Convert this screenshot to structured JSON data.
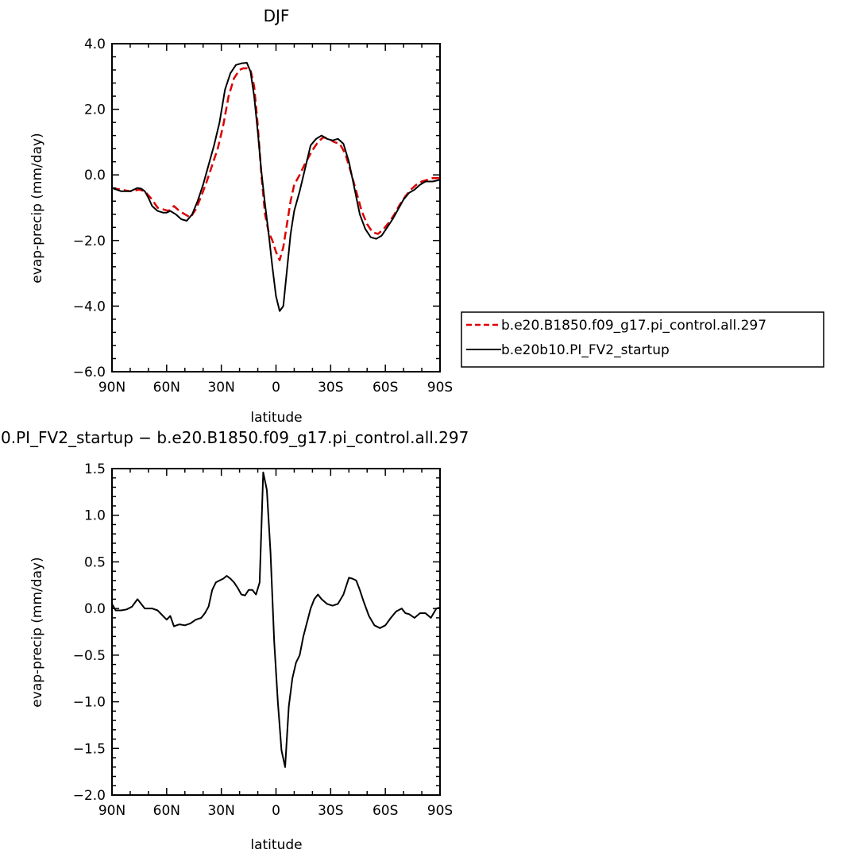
{
  "chart_data": [
    {
      "type": "line",
      "title": "DJF",
      "xlabel": "latitude",
      "ylabel": "evap-precip (mm/day)",
      "xlim": [
        90,
        -90
      ],
      "ylim": [
        -6.0,
        4.0
      ],
      "grid": false,
      "x_ticks": [
        90,
        60,
        30,
        0,
        -30,
        -60,
        -90
      ],
      "x_tick_labels": [
        "90N",
        "60N",
        "30N",
        "0",
        "30S",
        "60S",
        "90S"
      ],
      "y_ticks": [
        4.0,
        2.0,
        0.0,
        -2.0,
        -4.0,
        -6.0
      ],
      "y_tick_labels": [
        "4.0",
        "2.0",
        "0.0",
        "−2.0",
        "−4.0",
        "−6.0"
      ],
      "legend_position": "right",
      "series": [
        {
          "name": "b.e20.B1850.f09_g17.pi_control.all.297",
          "color": "#dd0000",
          "dash": "dashed",
          "x": [
            90,
            85,
            80,
            75,
            72,
            68,
            65,
            62,
            59,
            56,
            53,
            50,
            47,
            44,
            41,
            38,
            35,
            32,
            29,
            26,
            23,
            20,
            18,
            16,
            14,
            12,
            10,
            8,
            6,
            4,
            2,
            0,
            -2,
            -4,
            -6,
            -8,
            -10,
            -13,
            -16,
            -20,
            -23,
            -26,
            -29,
            -32,
            -35,
            -38,
            -41,
            -44,
            -47,
            -50,
            -53,
            -56,
            -59,
            -62,
            -65,
            -68,
            -71,
            -74,
            -77,
            -80,
            -83,
            -86,
            -90
          ],
          "y": [
            -0.4,
            -0.45,
            -0.5,
            -0.45,
            -0.5,
            -0.75,
            -1.0,
            -1.05,
            -1.1,
            -0.95,
            -1.1,
            -1.2,
            -1.3,
            -1.05,
            -0.65,
            -0.2,
            0.3,
            0.8,
            1.5,
            2.4,
            2.95,
            3.2,
            3.25,
            3.25,
            3.2,
            2.7,
            1.5,
            0.0,
            -1.2,
            -1.75,
            -2.0,
            -2.35,
            -2.6,
            -2.2,
            -1.5,
            -0.8,
            -0.3,
            0.0,
            0.35,
            0.75,
            1.0,
            1.15,
            1.1,
            1.0,
            0.95,
            0.65,
            0.1,
            -0.5,
            -1.1,
            -1.5,
            -1.75,
            -1.8,
            -1.65,
            -1.45,
            -1.2,
            -0.9,
            -0.65,
            -0.45,
            -0.3,
            -0.2,
            -0.15,
            -0.1,
            -0.1
          ]
        },
        {
          "name": "b.e20b10.PI_FV2_startup",
          "color": "#000000",
          "dash": "solid",
          "x": [
            90,
            85,
            80,
            76,
            74,
            72,
            70,
            68,
            65,
            62,
            60,
            58,
            55,
            52,
            49,
            46,
            43,
            40,
            37,
            34,
            31,
            28,
            25,
            22,
            19,
            16,
            14,
            12,
            10,
            8,
            6,
            4,
            2,
            0,
            -2,
            -4,
            -6,
            -8,
            -10,
            -13,
            -16,
            -19,
            -22,
            -25,
            -28,
            -31,
            -34,
            -37,
            -40,
            -43,
            -46,
            -49,
            -52,
            -55,
            -58,
            -61,
            -64,
            -67,
            -70,
            -73,
            -76,
            -79,
            -82,
            -86,
            -90
          ],
          "y": [
            -0.4,
            -0.5,
            -0.5,
            -0.4,
            -0.42,
            -0.5,
            -0.7,
            -0.95,
            -1.1,
            -1.15,
            -1.15,
            -1.1,
            -1.2,
            -1.35,
            -1.4,
            -1.2,
            -0.8,
            -0.3,
            0.3,
            0.9,
            1.6,
            2.6,
            3.1,
            3.35,
            3.4,
            3.42,
            3.15,
            2.4,
            1.3,
            0.1,
            -0.9,
            -1.8,
            -2.8,
            -3.7,
            -4.15,
            -4.0,
            -2.9,
            -1.8,
            -1.1,
            -0.5,
            0.2,
            0.9,
            1.1,
            1.2,
            1.1,
            1.05,
            1.1,
            0.95,
            0.4,
            -0.4,
            -1.2,
            -1.65,
            -1.9,
            -1.95,
            -1.85,
            -1.6,
            -1.35,
            -1.05,
            -0.75,
            -0.55,
            -0.45,
            -0.3,
            -0.2,
            -0.2,
            -0.15
          ]
        }
      ]
    },
    {
      "type": "line",
      "title": "0.PI_FV2_startup − b.e20.B1850.f09_g17.pi_control.all.297",
      "xlabel": "latitude",
      "ylabel": "evap-precip (mm/day)",
      "xlim": [
        90,
        -90
      ],
      "ylim": [
        -2.0,
        1.5
      ],
      "grid": false,
      "x_ticks": [
        90,
        60,
        30,
        0,
        -30,
        -60,
        -90
      ],
      "x_tick_labels": [
        "90N",
        "60N",
        "30N",
        "0",
        "30S",
        "60S",
        "90S"
      ],
      "y_ticks": [
        1.5,
        1.0,
        0.5,
        0.0,
        -0.5,
        -1.0,
        -1.5,
        -2.0
      ],
      "y_tick_labels": [
        "1.5",
        "1.0",
        "0.5",
        "0.0",
        "−0.5",
        "−1.0",
        "−1.5",
        "−2.0"
      ],
      "series": [
        {
          "color": "#000000",
          "dash": "solid",
          "x": [
            90,
            88,
            85,
            82,
            79,
            76,
            74,
            72,
            70,
            68,
            65,
            62,
            60,
            58,
            56,
            53,
            50,
            47,
            44,
            41,
            39,
            37,
            35,
            33,
            31,
            29,
            27,
            25,
            23,
            21,
            19,
            17,
            15,
            13,
            11,
            9,
            7,
            5,
            3,
            1,
            -1,
            -3,
            -5,
            -7,
            -9,
            -11,
            -13,
            -15,
            -17,
            -19,
            -21,
            -23,
            -25,
            -28,
            -31,
            -34,
            -37,
            -40,
            -42,
            -44,
            -46,
            -48,
            -51,
            -54,
            -57,
            -60,
            -63,
            -66,
            -69,
            -71,
            -73,
            -76,
            -79,
            -82,
            -85,
            -88,
            -90
          ],
          "y": [
            0.05,
            -0.02,
            -0.02,
            -0.01,
            0.02,
            0.1,
            0.05,
            0.0,
            0.0,
            0.0,
            -0.02,
            -0.08,
            -0.12,
            -0.08,
            -0.19,
            -0.17,
            -0.18,
            -0.16,
            -0.12,
            -0.1,
            -0.05,
            0.02,
            0.2,
            0.28,
            0.3,
            0.32,
            0.35,
            0.32,
            0.28,
            0.22,
            0.15,
            0.14,
            0.2,
            0.2,
            0.15,
            0.28,
            1.46,
            1.27,
            0.6,
            -0.35,
            -1.0,
            -1.52,
            -1.7,
            -1.05,
            -0.75,
            -0.58,
            -0.5,
            -0.3,
            -0.15,
            0.0,
            0.1,
            0.15,
            0.1,
            0.05,
            0.03,
            0.05,
            0.15,
            0.33,
            0.32,
            0.3,
            0.2,
            0.08,
            -0.08,
            -0.18,
            -0.21,
            -0.18,
            -0.1,
            -0.03,
            0.0,
            -0.05,
            -0.06,
            -0.1,
            -0.05,
            -0.05,
            -0.1,
            0.0,
            0.01
          ]
        }
      ]
    }
  ]
}
